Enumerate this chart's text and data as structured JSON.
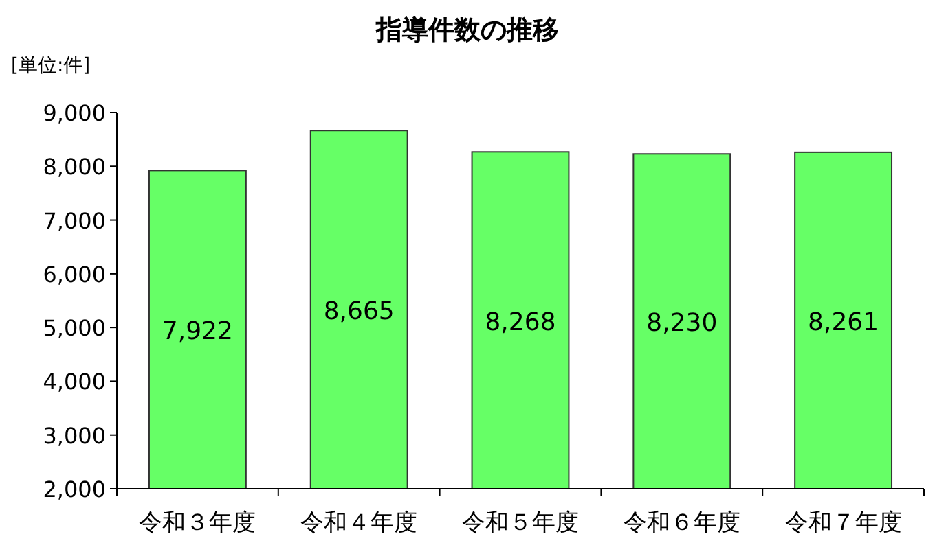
{
  "chart_data": {
    "type": "bar",
    "title": "指導件数の推移",
    "annotations": [
      "[単位:件]"
    ],
    "categories": [
      "令和３年度",
      "令和４年度",
      "令和５年度",
      "令和６年度",
      "令和７年度"
    ],
    "values": [
      7922,
      8665,
      8268,
      8230,
      8261
    ],
    "color": "#66ff66",
    "ylim": [
      2000,
      9000
    ],
    "yticks": [
      {
        "value": 2000,
        "label": "2,000"
      },
      {
        "value": 3000,
        "label": "3,000"
      },
      {
        "value": 4000,
        "label": "4,000"
      },
      {
        "value": 5000,
        "label": "5,000"
      },
      {
        "value": 6000,
        "label": "6,000"
      },
      {
        "value": 7000,
        "label": "7,000"
      },
      {
        "value": 8000,
        "label": "8,000"
      },
      {
        "value": 9000,
        "label": "9,000"
      }
    ],
    "value_labels": [
      "7,922",
      "8,665",
      "8,268",
      "8,230",
      "8,261"
    ],
    "grid": false
  }
}
